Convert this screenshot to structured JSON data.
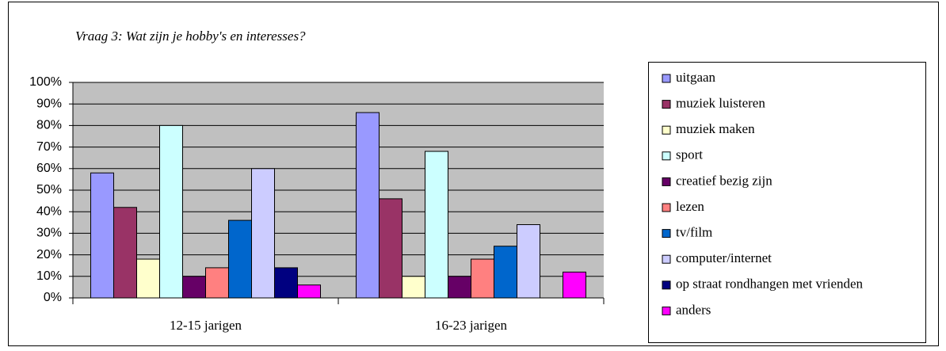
{
  "chart_data": {
    "type": "bar",
    "title": "Vraag 3: Wat zijn je hobby's en interesses?",
    "categories": [
      "12-15 jarigen",
      "16-23 jarigen"
    ],
    "series": [
      {
        "name": "uitgaan",
        "color": "#9999FF",
        "values": [
          58,
          86
        ]
      },
      {
        "name": "muziek luisteren",
        "color": "#993366",
        "values": [
          42,
          46
        ]
      },
      {
        "name": "muziek maken",
        "color": "#FFFFCC",
        "values": [
          18,
          10
        ]
      },
      {
        "name": "sport",
        "color": "#CCFFFF",
        "values": [
          80,
          68
        ]
      },
      {
        "name": "creatief bezig zijn",
        "color": "#660066",
        "values": [
          10,
          10
        ]
      },
      {
        "name": "lezen",
        "color": "#FF8080",
        "values": [
          14,
          18
        ]
      },
      {
        "name": "tv/film",
        "color": "#0066CC",
        "values": [
          36,
          24
        ]
      },
      {
        "name": "computer/internet",
        "color": "#CCCCFF",
        "values": [
          60,
          34
        ]
      },
      {
        "name": "op straat rondhangen met vrienden",
        "color": "#000080",
        "values": [
          14,
          0
        ]
      },
      {
        "name": "anders",
        "color": "#FF00FF",
        "values": [
          6,
          12
        ]
      }
    ],
    "ylim": [
      0,
      100
    ],
    "yticks": [
      {
        "value": 0,
        "label": "0%"
      },
      {
        "value": 10,
        "label": "10%"
      },
      {
        "value": 20,
        "label": "20%"
      },
      {
        "value": 30,
        "label": "30%"
      },
      {
        "value": 40,
        "label": "40%"
      },
      {
        "value": 50,
        "label": "50%"
      },
      {
        "value": 60,
        "label": "60%"
      },
      {
        "value": 70,
        "label": "70%"
      },
      {
        "value": 80,
        "label": "80%"
      },
      {
        "value": 90,
        "label": "90%"
      },
      {
        "value": 100,
        "label": "100%"
      }
    ],
    "grid": true,
    "plot_background": "#C0C0C0",
    "legend": "right"
  }
}
